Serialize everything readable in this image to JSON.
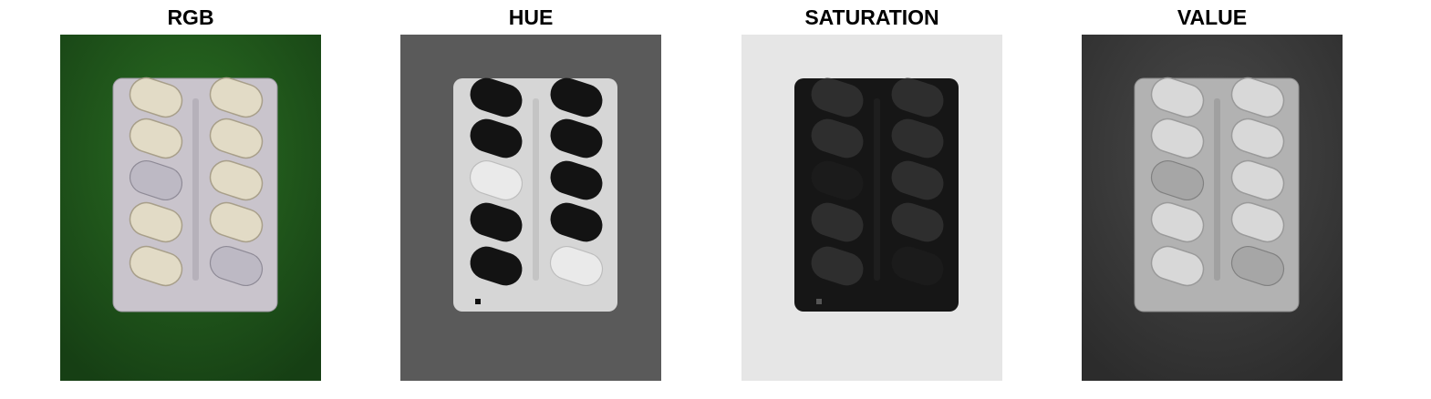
{
  "panels": [
    {
      "title": "RGB",
      "channel": "rgb"
    },
    {
      "title": "HUE",
      "channel": "hue"
    },
    {
      "title": "SATURATION",
      "channel": "saturation"
    },
    {
      "title": "VALUE",
      "channel": "value"
    }
  ],
  "subject": "blister-pack-with-tablets",
  "colors": {
    "rgb_background": "#1e5a1c",
    "rgb_pack": "#c9c4cc",
    "rgb_pill": "#e4ddc8",
    "hue_background": "#5a5a5a",
    "hue_pack": "#d8d8d8",
    "hue_pill": "#141414",
    "sat_background": "#e6e6e6",
    "sat_pack": "#161616",
    "sat_pill": "#2e2e2e",
    "val_background": "#3c3c3c",
    "val_pack": "#b4b4b4",
    "val_pill": "#dcdcdc"
  }
}
